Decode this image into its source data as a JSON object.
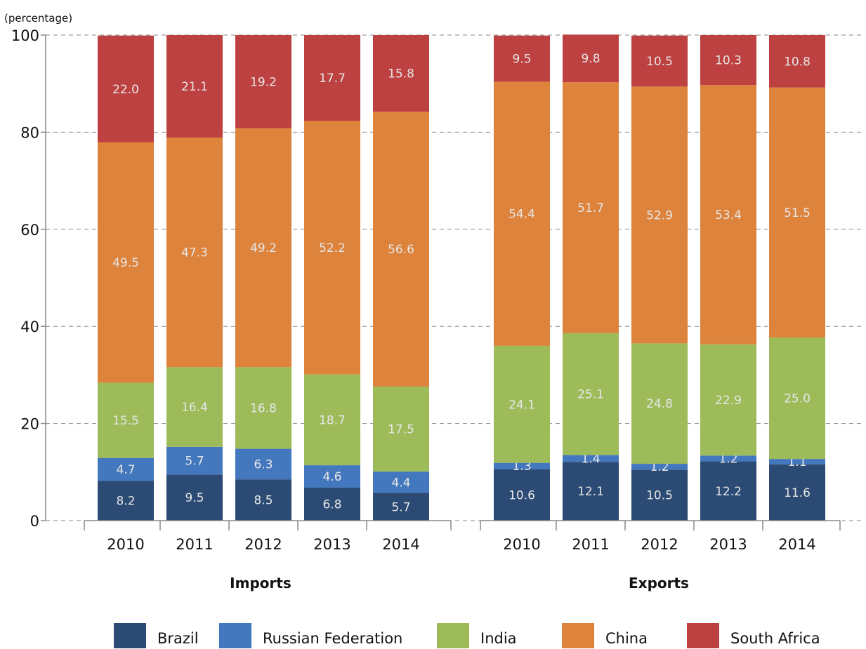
{
  "chart_data": {
    "type": "bar",
    "stacked": true,
    "unit_label": "(percentage)",
    "ylim": [
      0,
      100
    ],
    "yticks": [
      0,
      20,
      40,
      60,
      80,
      100
    ],
    "grid": true,
    "legend_position": "bottom",
    "series": [
      {
        "name": "Brazil",
        "color": "#2b4a74"
      },
      {
        "name": "Russian Federation",
        "color": "#4378bf"
      },
      {
        "name": "India",
        "color": "#9dbb59"
      },
      {
        "name": "China",
        "color": "#dd833c"
      },
      {
        "name": "South Africa",
        "color": "#be4141"
      }
    ],
    "groups": [
      {
        "title": "Imports",
        "categories": [
          "2010",
          "2011",
          "2012",
          "2013",
          "2014"
        ],
        "values": {
          "Brazil": [
            8.2,
            9.5,
            8.5,
            6.8,
            5.7
          ],
          "Russian Federation": [
            4.7,
            5.7,
            6.3,
            4.6,
            4.4
          ],
          "India": [
            15.5,
            16.4,
            16.8,
            18.7,
            17.5
          ],
          "China": [
            49.5,
            47.3,
            49.2,
            52.2,
            56.6
          ],
          "South Africa": [
            22.0,
            21.1,
            19.2,
            17.7,
            15.8
          ]
        }
      },
      {
        "title": "Exports",
        "categories": [
          "2010",
          "2011",
          "2012",
          "2013",
          "2014"
        ],
        "values": {
          "Brazil": [
            10.6,
            12.1,
            10.5,
            12.2,
            11.6
          ],
          "Russian Federation": [
            1.3,
            1.4,
            1.2,
            1.2,
            1.1
          ],
          "India": [
            24.1,
            25.1,
            24.8,
            22.9,
            25.0
          ],
          "China": [
            54.4,
            51.7,
            52.9,
            53.4,
            51.5
          ],
          "South Africa": [
            9.5,
            9.8,
            10.5,
            10.3,
            10.8
          ]
        }
      }
    ]
  }
}
